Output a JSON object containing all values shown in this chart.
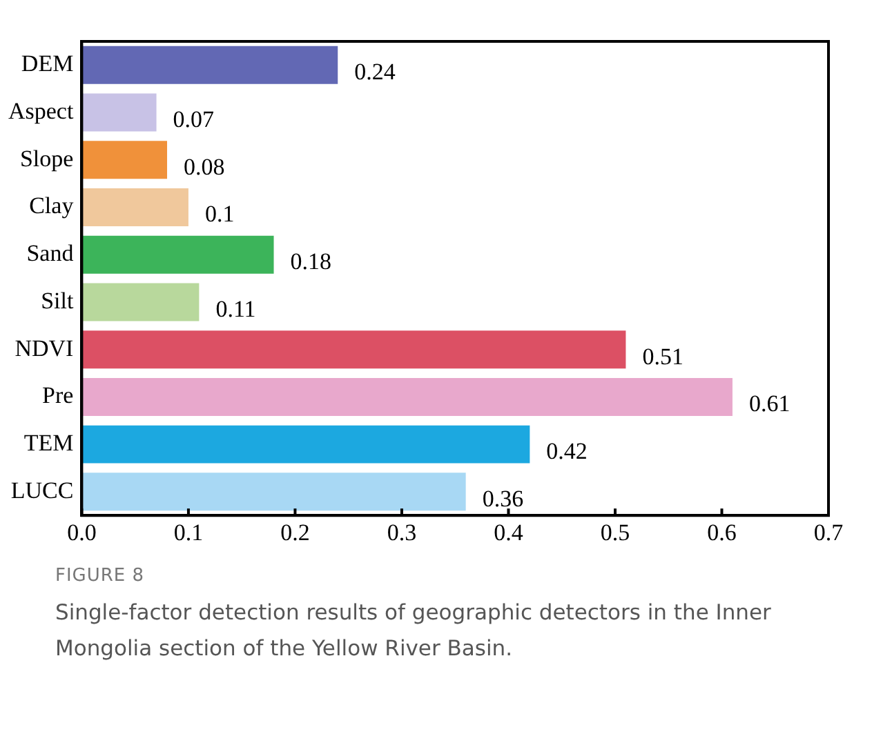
{
  "chart_data": {
    "type": "bar",
    "orientation": "horizontal",
    "categories": [
      "DEM",
      "Aspect",
      "Slope",
      "Clay",
      "Sand",
      "Silt",
      "NDVI",
      "Pre",
      "TEM",
      "LUCC"
    ],
    "values": [
      0.24,
      0.07,
      0.08,
      0.1,
      0.18,
      0.11,
      0.51,
      0.61,
      0.42,
      0.36
    ],
    "colors": [
      "#6268b4",
      "#c8c2e6",
      "#f0913a",
      "#f0c89c",
      "#3cb45a",
      "#b8d89c",
      "#dc5064",
      "#e8a8cc",
      "#1ca8e0",
      "#a8d8f4"
    ],
    "data_labels": true,
    "xlim": [
      0,
      0.7
    ],
    "xticks": [
      {
        "value": 0,
        "label": "0.0"
      },
      {
        "value": 0.1,
        "label": "0.1"
      },
      {
        "value": 0.2,
        "label": "0.2"
      },
      {
        "value": 0.3,
        "label": "0.3"
      },
      {
        "value": 0.4,
        "label": "0.4"
      },
      {
        "value": 0.5,
        "label": "0.5"
      },
      {
        "value": 0.6,
        "label": "0.6"
      },
      {
        "value": 0.7,
        "label": "0.7"
      }
    ],
    "grid": false,
    "legend": false,
    "annotations": [
      "FIGURE 8",
      "Single-factor detection results of geographic detectors in the Inner Mongolia section of the Yellow River Basin."
    ]
  }
}
